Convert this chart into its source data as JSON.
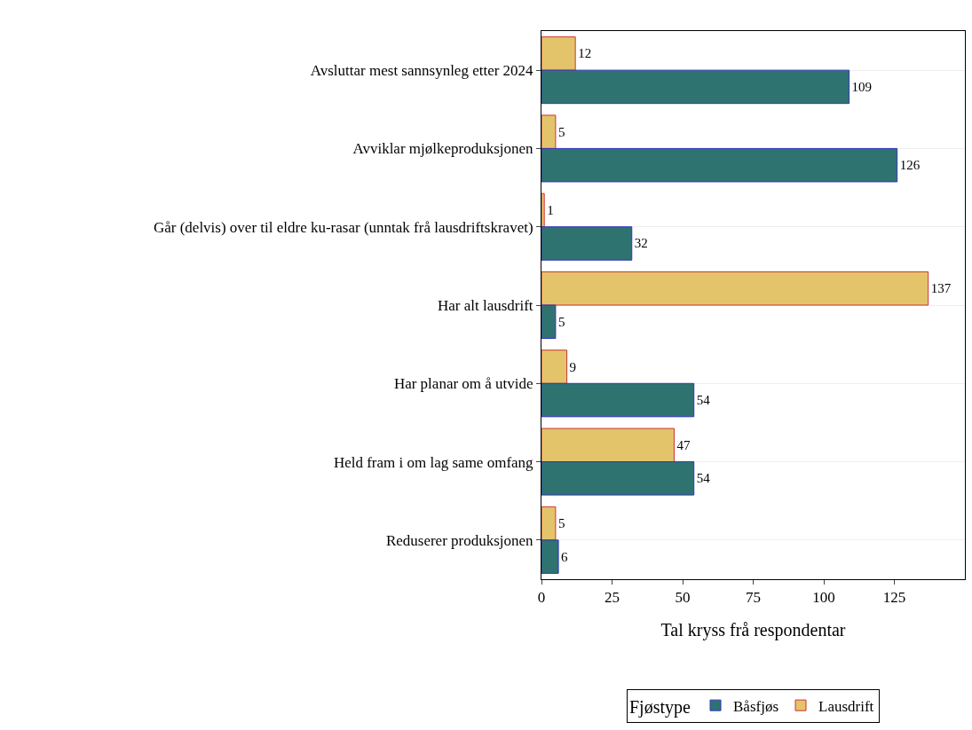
{
  "chart_data": {
    "type": "bar",
    "orientation": "horizontal",
    "xlabel": "Tal kryss frå respondentar",
    "legend_title": "Fjøstype",
    "categories": [
      "Avsluttar mest sannsynleg etter 2024",
      "Avviklar mjølkeproduksjonen",
      "Går (delvis) over til eldre ku-rasar (unntak frå lausdriftskravet)",
      "Har alt lausdrift",
      "Har planar om å utvide",
      "Held fram i om lag same omfang",
      "Reduserer produksjonen"
    ],
    "series": [
      {
        "name": "Båsfjøs",
        "color": "#2e7370",
        "values": [
          109,
          126,
          32,
          5,
          54,
          54,
          6
        ]
      },
      {
        "name": "Lausdrift",
        "color": "#e3c46a",
        "values": [
          12,
          5,
          1,
          137,
          9,
          47,
          5
        ]
      }
    ],
    "xlim": [
      0,
      150
    ],
    "xticks": [
      0,
      25,
      50,
      75,
      100,
      125
    ],
    "data_labels": true,
    "grid": "y",
    "legend": "bottom"
  }
}
